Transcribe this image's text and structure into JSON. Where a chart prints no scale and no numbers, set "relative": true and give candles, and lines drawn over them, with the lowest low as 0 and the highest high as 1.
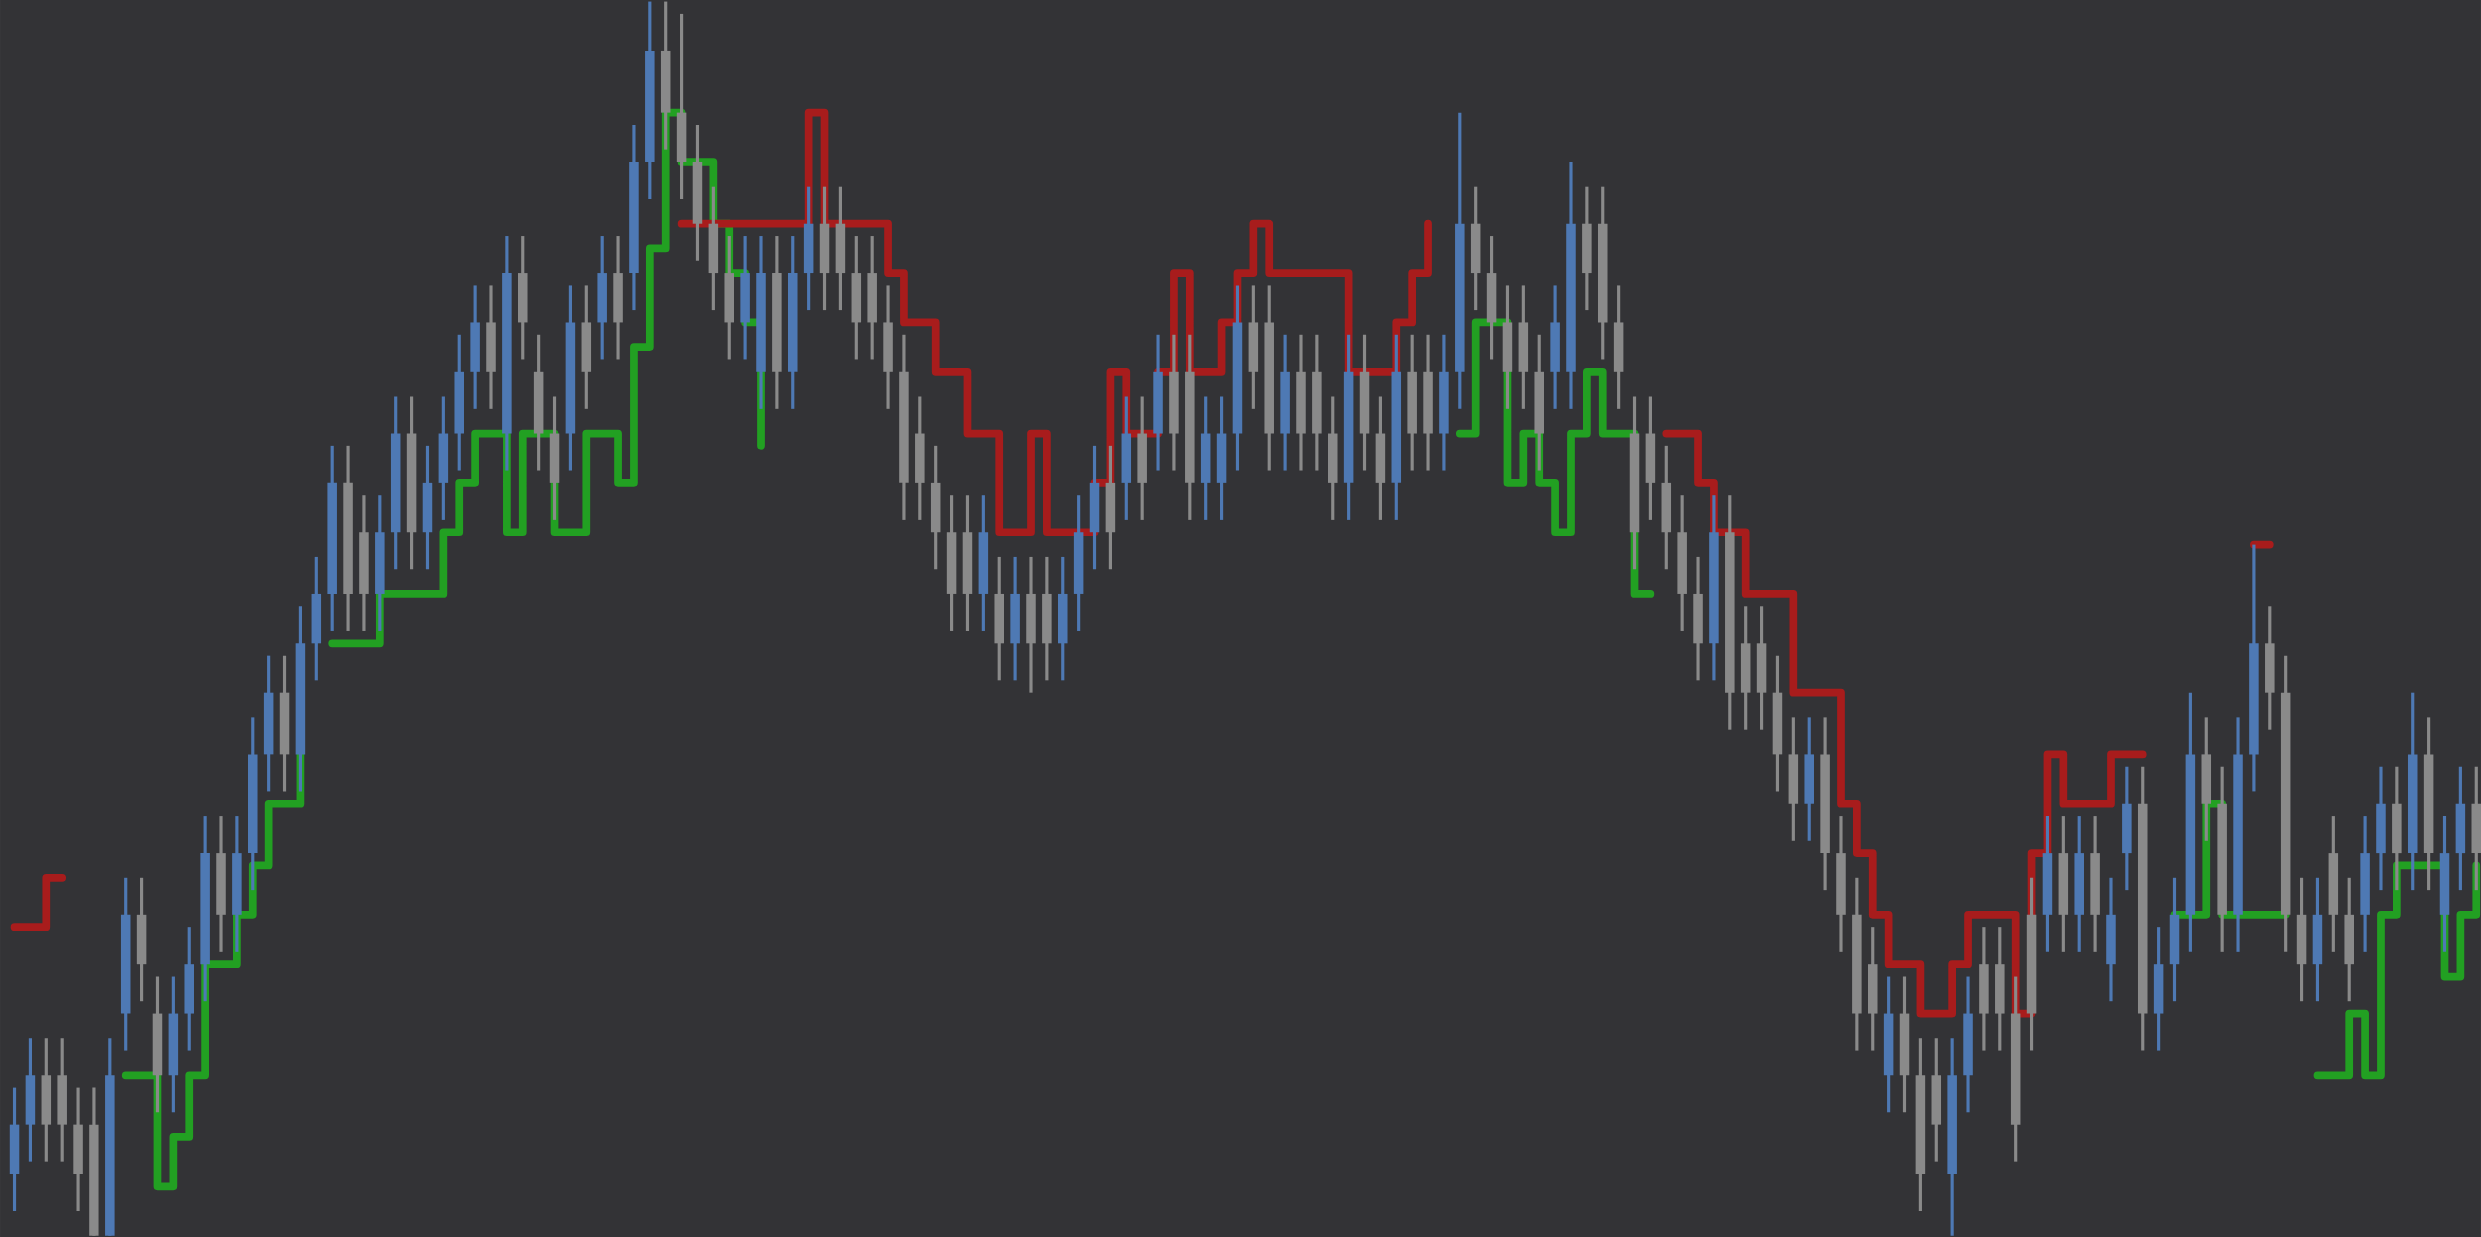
{
  "chart_data": {
    "type": "candlestick",
    "relative": true,
    "categories": [
      null,
      null,
      null,
      null,
      null,
      null,
      null,
      null,
      null,
      null,
      null,
      null,
      null,
      null,
      null,
      null,
      null,
      null,
      null,
      null,
      null,
      null,
      null,
      null,
      null,
      null,
      null,
      null,
      null,
      null,
      null,
      null,
      null,
      null,
      null,
      null,
      null,
      null,
      null,
      null,
      null,
      null,
      null,
      null,
      null,
      null,
      null,
      null,
      null,
      null,
      null,
      null,
      null,
      null,
      null,
      null,
      null,
      null,
      null,
      null,
      null,
      null,
      null,
      null,
      null,
      null,
      null,
      null,
      null,
      null,
      null,
      null,
      null,
      null,
      null,
      null,
      null,
      null,
      null,
      null,
      null,
      null,
      null,
      null,
      null,
      null,
      null,
      null,
      null,
      null,
      null,
      null,
      null,
      null,
      null,
      null,
      null,
      null,
      null,
      null,
      null,
      null,
      null,
      null,
      null,
      null,
      null,
      null,
      null,
      null,
      null,
      null,
      null,
      null,
      null,
      null,
      null,
      null,
      null,
      null,
      null,
      null,
      null,
      null,
      null,
      null,
      null,
      null,
      null,
      null,
      null,
      null,
      null,
      null,
      null,
      null,
      null,
      null,
      null,
      null,
      null,
      null,
      null,
      null,
      null,
      null,
      null,
      null,
      null,
      null,
      null,
      null,
      null,
      null,
      null,
      null
    ],
    "ohlc": [
      [
        0.05,
        0.12,
        0.02,
        0.09
      ],
      [
        0.09,
        0.16,
        0.06,
        0.13
      ],
      [
        0.13,
        0.16,
        0.06,
        0.09
      ],
      [
        0.13,
        0.16,
        0.06,
        0.09
      ],
      [
        0.09,
        0.12,
        0.02,
        0.05
      ],
      [
        0.09,
        0.12,
        0,
        0
      ],
      [
        0,
        0.16,
        0,
        0.13
      ],
      [
        0.18,
        0.29,
        0.15,
        0.26
      ],
      [
        0.26,
        0.29,
        0.19,
        0.22
      ],
      [
        0.18,
        0.21,
        0.1,
        0.13
      ],
      [
        0.13,
        0.21,
        0.1,
        0.18
      ],
      [
        0.18,
        0.25,
        0.15,
        0.22
      ],
      [
        0.22,
        0.34,
        0.19,
        0.31
      ],
      [
        0.31,
        0.34,
        0.23,
        0.26
      ],
      [
        0.26,
        0.34,
        0.23,
        0.31
      ],
      [
        0.31,
        0.42,
        0.28,
        0.39
      ],
      [
        0.39,
        0.47,
        0.36,
        0.44
      ],
      [
        0.44,
        0.47,
        0.36,
        0.39
      ],
      [
        0.39,
        0.51,
        0.36,
        0.48
      ],
      [
        0.48,
        0.55,
        0.45,
        0.52
      ],
      [
        0.52,
        0.64,
        0.49,
        0.61
      ],
      [
        0.61,
        0.64,
        0.49,
        0.52
      ],
      [
        0.57,
        0.6,
        0.49,
        0.52
      ],
      [
        0.52,
        0.6,
        0.49,
        0.57
      ],
      [
        0.57,
        0.68,
        0.54,
        0.65
      ],
      [
        0.65,
        0.68,
        0.54,
        0.57
      ],
      [
        0.57,
        0.64,
        0.54,
        0.61
      ],
      [
        0.61,
        0.68,
        0.58,
        0.65
      ],
      [
        0.65,
        0.73,
        0.62,
        0.7
      ],
      [
        0.7,
        0.77,
        0.67,
        0.74
      ],
      [
        0.74,
        0.77,
        0.67,
        0.7
      ],
      [
        0.65,
        0.81,
        0.62,
        0.78
      ],
      [
        0.78,
        0.81,
        0.71,
        0.74
      ],
      [
        0.7,
        0.73,
        0.62,
        0.65
      ],
      [
        0.65,
        0.68,
        0.58,
        0.61
      ],
      [
        0.65,
        0.77,
        0.62,
        0.74
      ],
      [
        0.74,
        0.77,
        0.67,
        0.7
      ],
      [
        0.74,
        0.81,
        0.71,
        0.78
      ],
      [
        0.78,
        0.81,
        0.71,
        0.74
      ],
      [
        0.78,
        0.9,
        0.75,
        0.87
      ],
      [
        0.87,
        1,
        0.84,
        0.96
      ],
      [
        0.96,
        1,
        0.88,
        0.91
      ],
      [
        0.91,
        0.99,
        0.84,
        0.87
      ],
      [
        0.87,
        0.9,
        0.79,
        0.82
      ],
      [
        0.82,
        0.85,
        0.75,
        0.78
      ],
      [
        0.78,
        0.81,
        0.71,
        0.74
      ],
      [
        0.74,
        0.81,
        0.71,
        0.78
      ],
      [
        0.7,
        0.81,
        0.67,
        0.78
      ],
      [
        0.78,
        0.81,
        0.67,
        0.7
      ],
      [
        0.7,
        0.81,
        0.67,
        0.78
      ],
      [
        0.78,
        0.85,
        0.75,
        0.82
      ],
      [
        0.82,
        0.85,
        0.75,
        0.78
      ],
      [
        0.82,
        0.85,
        0.75,
        0.78
      ],
      [
        0.78,
        0.81,
        0.71,
        0.74
      ],
      [
        0.78,
        0.81,
        0.71,
        0.74
      ],
      [
        0.74,
        0.77,
        0.67,
        0.7
      ],
      [
        0.7,
        0.73,
        0.58,
        0.61
      ],
      [
        0.65,
        0.68,
        0.58,
        0.61
      ],
      [
        0.61,
        0.64,
        0.54,
        0.57
      ],
      [
        0.57,
        0.6,
        0.49,
        0.52
      ],
      [
        0.57,
        0.6,
        0.49,
        0.52
      ],
      [
        0.52,
        0.6,
        0.49,
        0.57
      ],
      [
        0.52,
        0.55,
        0.45,
        0.48
      ],
      [
        0.48,
        0.55,
        0.45,
        0.52
      ],
      [
        0.52,
        0.55,
        0.44,
        0.48
      ],
      [
        0.52,
        0.55,
        0.45,
        0.48
      ],
      [
        0.48,
        0.55,
        0.45,
        0.52
      ],
      [
        0.52,
        0.6,
        0.49,
        0.57
      ],
      [
        0.57,
        0.64,
        0.54,
        0.61
      ],
      [
        0.61,
        0.64,
        0.54,
        0.57
      ],
      [
        0.61,
        0.68,
        0.58,
        0.65
      ],
      [
        0.65,
        0.68,
        0.58,
        0.61
      ],
      [
        0.65,
        0.73,
        0.62,
        0.7
      ],
      [
        0.7,
        0.73,
        0.62,
        0.65
      ],
      [
        0.7,
        0.73,
        0.58,
        0.61
      ],
      [
        0.61,
        0.68,
        0.58,
        0.65
      ],
      [
        0.61,
        0.68,
        0.58,
        0.65
      ],
      [
        0.65,
        0.77,
        0.62,
        0.74
      ],
      [
        0.74,
        0.77,
        0.67,
        0.7
      ],
      [
        0.74,
        0.77,
        0.62,
        0.65
      ],
      [
        0.65,
        0.73,
        0.62,
        0.7
      ],
      [
        0.7,
        0.73,
        0.62,
        0.65
      ],
      [
        0.7,
        0.73,
        0.62,
        0.65
      ],
      [
        0.65,
        0.68,
        0.58,
        0.61
      ],
      [
        0.61,
        0.73,
        0.58,
        0.7
      ],
      [
        0.7,
        0.73,
        0.62,
        0.65
      ],
      [
        0.65,
        0.68,
        0.58,
        0.61
      ],
      [
        0.61,
        0.73,
        0.58,
        0.7
      ],
      [
        0.7,
        0.73,
        0.62,
        0.65
      ],
      [
        0.7,
        0.73,
        0.62,
        0.65
      ],
      [
        0.65,
        0.73,
        0.62,
        0.7
      ],
      [
        0.7,
        0.91,
        0.67,
        0.82
      ],
      [
        0.82,
        0.85,
        0.75,
        0.78
      ],
      [
        0.78,
        0.81,
        0.71,
        0.74
      ],
      [
        0.74,
        0.77,
        0.67,
        0.7
      ],
      [
        0.74,
        0.77,
        0.67,
        0.7
      ],
      [
        0.7,
        0.73,
        0.62,
        0.65
      ],
      [
        0.7,
        0.77,
        0.67,
        0.74
      ],
      [
        0.7,
        0.87,
        0.67,
        0.82
      ],
      [
        0.82,
        0.85,
        0.75,
        0.78
      ],
      [
        0.82,
        0.85,
        0.71,
        0.74
      ],
      [
        0.74,
        0.77,
        0.67,
        0.7
      ],
      [
        0.65,
        0.68,
        0.54,
        0.57
      ],
      [
        0.65,
        0.68,
        0.58,
        0.61
      ],
      [
        0.61,
        0.64,
        0.54,
        0.57
      ],
      [
        0.57,
        0.6,
        0.49,
        0.52
      ],
      [
        0.52,
        0.55,
        0.45,
        0.48
      ],
      [
        0.48,
        0.6,
        0.45,
        0.57
      ],
      [
        0.57,
        0.6,
        0.41,
        0.44
      ],
      [
        0.48,
        0.51,
        0.41,
        0.44
      ],
      [
        0.48,
        0.51,
        0.41,
        0.44
      ],
      [
        0.44,
        0.47,
        0.36,
        0.39
      ],
      [
        0.39,
        0.42,
        0.32,
        0.35
      ],
      [
        0.35,
        0.42,
        0.32,
        0.39
      ],
      [
        0.39,
        0.42,
        0.28,
        0.31
      ],
      [
        0.31,
        0.34,
        0.23,
        0.26
      ],
      [
        0.26,
        0.29,
        0.15,
        0.18
      ],
      [
        0.22,
        0.25,
        0.15,
        0.18
      ],
      [
        0.13,
        0.21,
        0.1,
        0.18
      ],
      [
        0.18,
        0.21,
        0.1,
        0.13
      ],
      [
        0.13,
        0.16,
        0.02,
        0.05
      ],
      [
        0.13,
        0.16,
        0.06,
        0.09
      ],
      [
        0.05,
        0.16,
        0,
        0.13
      ],
      [
        0.13,
        0.21,
        0.1,
        0.18
      ],
      [
        0.22,
        0.25,
        0.15,
        0.18
      ],
      [
        0.22,
        0.25,
        0.15,
        0.18
      ],
      [
        0.18,
        0.21,
        0.06,
        0.09
      ],
      [
        0.26,
        0.29,
        0.15,
        0.18
      ],
      [
        0.26,
        0.34,
        0.23,
        0.31
      ],
      [
        0.31,
        0.34,
        0.23,
        0.26
      ],
      [
        0.26,
        0.34,
        0.23,
        0.31
      ],
      [
        0.31,
        0.34,
        0.23,
        0.26
      ],
      [
        0.22,
        0.29,
        0.19,
        0.26
      ],
      [
        0.31,
        0.38,
        0.28,
        0.35
      ],
      [
        0.35,
        0.38,
        0.15,
        0.18
      ],
      [
        0.18,
        0.25,
        0.15,
        0.22
      ],
      [
        0.22,
        0.29,
        0.19,
        0.26
      ],
      [
        0.26,
        0.44,
        0.23,
        0.39
      ],
      [
        0.39,
        0.42,
        0.32,
        0.35
      ],
      [
        0.35,
        0.38,
        0.23,
        0.26
      ],
      [
        0.26,
        0.42,
        0.23,
        0.39
      ],
      [
        0.39,
        0.56,
        0.36,
        0.48
      ],
      [
        0.48,
        0.51,
        0.41,
        0.44
      ],
      [
        0.44,
        0.47,
        0.23,
        0.26
      ],
      [
        0.26,
        0.29,
        0.19,
        0.22
      ],
      [
        0.22,
        0.29,
        0.19,
        0.26
      ],
      [
        0.31,
        0.34,
        0.23,
        0.26
      ],
      [
        0.26,
        0.29,
        0.19,
        0.22
      ],
      [
        0.26,
        0.34,
        0.23,
        0.31
      ],
      [
        0.31,
        0.38,
        0.28,
        0.35
      ],
      [
        0.35,
        0.38,
        0.28,
        0.31
      ],
      [
        0.31,
        0.44,
        0.28,
        0.39
      ],
      [
        0.39,
        0.42,
        0.28,
        0.31
      ],
      [
        0.26,
        0.34,
        0.23,
        0.31
      ],
      [
        0.31,
        0.38,
        0.28,
        0.35
      ],
      [
        0.35,
        0.38,
        0.28,
        0.31
      ]
    ],
    "colors": [
      "#4e79b4",
      "#4e79b4",
      "#8a8a8a",
      "#8a8a8a",
      "#8a8a8a",
      "#8a8a8a",
      "#4e79b4",
      "#4e79b4",
      "#8a8a8a",
      "#8a8a8a",
      "#4e79b4",
      "#4e79b4",
      "#4e79b4",
      "#8a8a8a",
      "#4e79b4",
      "#4e79b4",
      "#4e79b4",
      "#8a8a8a",
      "#4e79b4",
      "#4e79b4",
      "#4e79b4",
      "#8a8a8a",
      "#8a8a8a",
      "#4e79b4",
      "#4e79b4",
      "#8a8a8a",
      "#4e79b4",
      "#4e79b4",
      "#4e79b4",
      "#4e79b4",
      "#8a8a8a",
      "#4e79b4",
      "#8a8a8a",
      "#8a8a8a",
      "#8a8a8a",
      "#4e79b4",
      "#8a8a8a",
      "#4e79b4",
      "#8a8a8a",
      "#4e79b4",
      "#4e79b4",
      "#8a8a8a",
      "#8a8a8a",
      "#8a8a8a",
      "#8a8a8a",
      "#8a8a8a",
      "#4e79b4",
      "#4e79b4",
      "#8a8a8a",
      "#4e79b4",
      "#4e79b4",
      "#8a8a8a",
      "#8a8a8a",
      "#8a8a8a",
      "#8a8a8a",
      "#8a8a8a",
      "#8a8a8a",
      "#8a8a8a",
      "#8a8a8a",
      "#8a8a8a",
      "#8a8a8a",
      "#4e79b4",
      "#8a8a8a",
      "#4e79b4",
      "#8a8a8a",
      "#8a8a8a",
      "#4e79b4",
      "#4e79b4",
      "#4e79b4",
      "#8a8a8a",
      "#4e79b4",
      "#8a8a8a",
      "#4e79b4",
      "#8a8a8a",
      "#8a8a8a",
      "#4e79b4",
      "#4e79b4",
      "#4e79b4",
      "#8a8a8a",
      "#8a8a8a",
      "#4e79b4",
      "#8a8a8a",
      "#8a8a8a",
      "#8a8a8a",
      "#4e79b4",
      "#8a8a8a",
      "#8a8a8a",
      "#4e79b4",
      "#8a8a8a",
      "#8a8a8a",
      "#4e79b4",
      "#4e79b4",
      "#8a8a8a",
      "#8a8a8a",
      "#8a8a8a",
      "#8a8a8a",
      "#8a8a8a",
      "#4e79b4",
      "#4e79b4",
      "#8a8a8a",
      "#8a8a8a",
      "#8a8a8a",
      "#8a8a8a",
      "#8a8a8a",
      "#8a8a8a",
      "#8a8a8a",
      "#8a8a8a",
      "#4e79b4",
      "#8a8a8a",
      "#8a8a8a",
      "#8a8a8a",
      "#8a8a8a",
      "#8a8a8a",
      "#4e79b4",
      "#8a8a8a",
      "#8a8a8a",
      "#8a8a8a",
      "#8a8a8a",
      "#4e79b4",
      "#8a8a8a",
      "#8a8a8a",
      "#8a8a8a",
      "#4e79b4",
      "#4e79b4",
      "#8a8a8a",
      "#8a8a8a",
      "#8a8a8a",
      "#8a8a8a",
      "#4e79b4",
      "#8a8a8a",
      "#4e79b4",
      "#8a8a8a",
      "#4e79b4",
      "#4e79b4",
      "#8a8a8a",
      "#4e79b4",
      "#4e79b4",
      "#4e79b4",
      "#8a8a8a",
      "#8a8a8a",
      "#4e79b4",
      "#4e79b4",
      "#8a8a8a",
      "#8a8a8a",
      "#8a8a8a",
      "#4e79b4",
      "#8a8a8a",
      "#8a8a8a",
      "#4e79b4",
      "#4e79b4",
      "#8a8a8a",
      "#4e79b4",
      "#8a8a8a",
      "#4e79b4",
      "#4e79b4",
      "#8a8a8a"
    ],
    "series": [
      {
        "type": "step",
        "color": "#22a022",
        "values": [
          null,
          null,
          null,
          null,
          null,
          null,
          null,
          0.13,
          0.13,
          0.04,
          0.08,
          0.13,
          0.22,
          0.22,
          0.26,
          0.3,
          0.35,
          0.35,
          0.39,
          null,
          0.48,
          0.48,
          0.48,
          0.52,
          0.52,
          0.52,
          0.52,
          0.57,
          0.61,
          0.65,
          0.65,
          0.57,
          0.65,
          0.65,
          0.57,
          0.57,
          0.65,
          0.65,
          0.61,
          0.72,
          0.8,
          0.91,
          0.87,
          0.87,
          0.82,
          0.78,
          0.74,
          0.64,
          null,
          null,
          null,
          null,
          null,
          null,
          null,
          null,
          null,
          null,
          null,
          null,
          null,
          null,
          null,
          null,
          null,
          null,
          null,
          null,
          null,
          null,
          null,
          null,
          null,
          null,
          null,
          null,
          null,
          null,
          null,
          null,
          null,
          null,
          null,
          null,
          null,
          null,
          null,
          null,
          null,
          null,
          null,
          0.65,
          0.74,
          0.74,
          0.61,
          0.65,
          0.61,
          0.57,
          0.65,
          0.7,
          0.65,
          0.65,
          0.52,
          0.52,
          null,
          null,
          null,
          null,
          null,
          null,
          null,
          null,
          null,
          null,
          null,
          null,
          null,
          null,
          null,
          null,
          null,
          null,
          null,
          null,
          null,
          null,
          null,
          null,
          null,
          null,
          null,
          null,
          null,
          null,
          null,
          null,
          0.26,
          0.26,
          0.35,
          0.26,
          0.26,
          0.26,
          0.26,
          0.26,
          null,
          0.13,
          0.13,
          0.18,
          0.13,
          0.26,
          0.3,
          0.3,
          0.3,
          0.21,
          0.26,
          0.3
        ]
      },
      {
        "type": "step",
        "color": "#a81c1c",
        "values": [
          0.25,
          0.25,
          0.29,
          0.29,
          null,
          null,
          null,
          null,
          null,
          null,
          null,
          null,
          null,
          null,
          null,
          null,
          null,
          null,
          null,
          null,
          null,
          null,
          null,
          null,
          null,
          null,
          null,
          null,
          null,
          null,
          null,
          null,
          null,
          null,
          null,
          null,
          null,
          null,
          null,
          null,
          null,
          null,
          0.82,
          0.82,
          0.82,
          0.82,
          0.82,
          0.82,
          0.82,
          0.82,
          0.91,
          0.82,
          0.82,
          0.82,
          0.82,
          0.78,
          0.74,
          0.74,
          0.7,
          0.7,
          0.65,
          0.65,
          0.57,
          0.57,
          0.65,
          0.57,
          0.57,
          0.57,
          0.61,
          0.7,
          0.65,
          0.65,
          0.7,
          0.78,
          0.7,
          0.7,
          0.74,
          0.78,
          0.82,
          0.78,
          0.78,
          0.78,
          0.78,
          0.78,
          0.7,
          0.7,
          0.7,
          0.74,
          0.78,
          0.82,
          null,
          null,
          null,
          null,
          null,
          null,
          null,
          null,
          null,
          null,
          null,
          null,
          null,
          null,
          0.65,
          0.65,
          0.61,
          0.57,
          0.57,
          0.52,
          0.52,
          0.52,
          0.44,
          0.44,
          0.44,
          0.35,
          0.31,
          0.26,
          0.22,
          0.22,
          0.18,
          0.18,
          0.22,
          0.26,
          0.26,
          0.26,
          0.18,
          0.31,
          0.39,
          0.35,
          0.35,
          0.35,
          0.39,
          0.39,
          0.39,
          null,
          null,
          null,
          null,
          null,
          null,
          0.56,
          0.56,
          null,
          null,
          null,
          null,
          null,
          null,
          null,
          null,
          null,
          null,
          null,
          null,
          null
        ]
      }
    ]
  }
}
